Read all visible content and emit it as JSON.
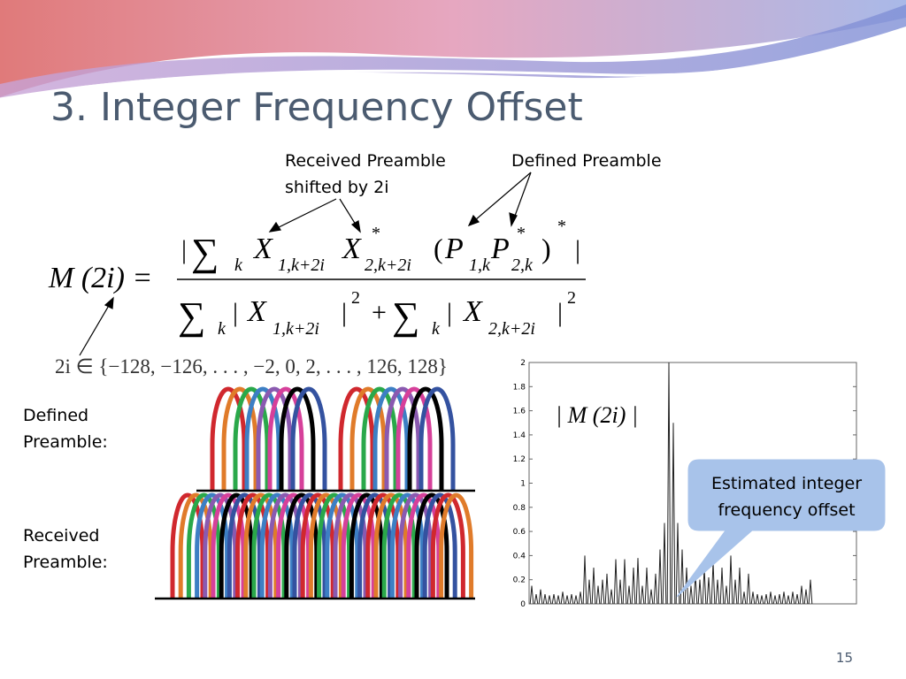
{
  "header": {
    "title": "3. Integer Frequency Offset"
  },
  "annotations": {
    "received": [
      "Received Preamble",
      "shifted by 2i"
    ],
    "defined": "Defined Preamble"
  },
  "formula": {
    "lhs": "M (2i) =",
    "numerator": [
      "|",
      "∑",
      "k",
      "X",
      "1,k+2i",
      "X",
      "*",
      "2,k+2i",
      "(",
      "P",
      "1,k",
      "P",
      "*",
      "2,k",
      ")",
      "*",
      "|"
    ],
    "denominator": [
      "∑",
      "k",
      "|",
      "X",
      "1,k+2i",
      "|",
      "2",
      "+",
      "∑",
      "k",
      "|",
      "X",
      "2,k+2i",
      "|",
      "2"
    ],
    "set": "2i ∈ {−128, −126, . . . , −2, 0, 2, . . . , 126, 128}"
  },
  "labels": {
    "defined": [
      "Defined",
      "Preamble:"
    ],
    "received": [
      "Received",
      "Preamble:"
    ]
  },
  "callout": [
    "Estimated integer",
    "frequency offset"
  ],
  "page_number": "15",
  "chart_data": {
    "type": "spike",
    "annotation": "| M (2i) |",
    "color": "#222222",
    "ylim": [
      0,
      2
    ],
    "yticks": [
      0,
      0.2,
      0.4,
      0.6,
      0.8,
      1,
      1.2,
      1.4,
      1.6,
      1.8,
      2
    ],
    "values": [
      0.15,
      0.08,
      0.12,
      0.08,
      0.07,
      0.08,
      0.07,
      0.1,
      0.07,
      0.08,
      0.07,
      0.1,
      0.4,
      0.2,
      0.3,
      0.15,
      0.2,
      0.25,
      0.12,
      0.37,
      0.2,
      0.37,
      0.15,
      0.3,
      0.38,
      0.15,
      0.3,
      0.12,
      0.25,
      0.45,
      0.67,
      2,
      1.5,
      0.67,
      0.45,
      0.3,
      0.15,
      0.25,
      0.2,
      0.3,
      0.22,
      0.35,
      0.2,
      0.3,
      0.15,
      0.4,
      0.2,
      0.3,
      0.1,
      0.25,
      0.1,
      0.08,
      0.07,
      0.08,
      0.1,
      0.07,
      0.08,
      0.1,
      0.07,
      0.1,
      0.08,
      0.15,
      0.12,
      0.2
    ]
  }
}
